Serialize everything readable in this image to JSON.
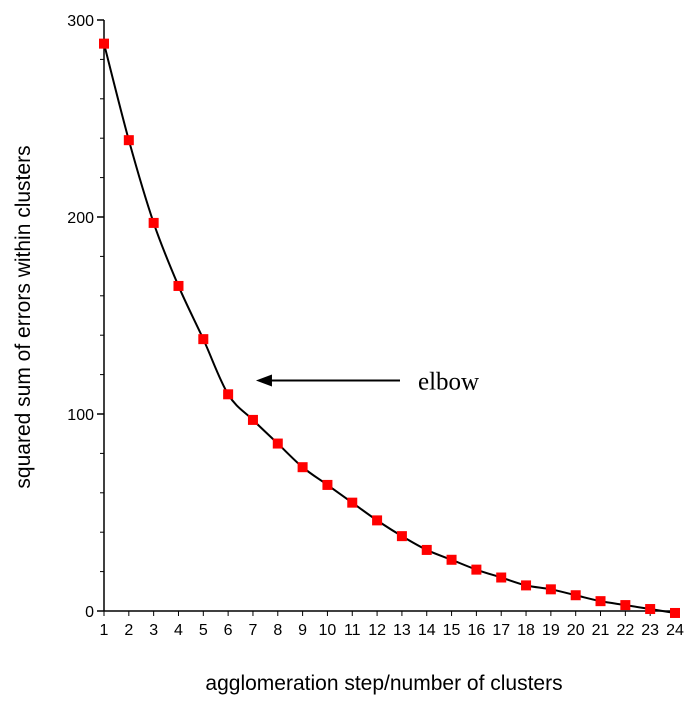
{
  "chart_data": {
    "type": "line",
    "title": "",
    "xlabel": "agglomeration step/number of clusters",
    "ylabel": "squared sum of errors within clusters",
    "x": [
      1,
      2,
      3,
      4,
      5,
      6,
      7,
      8,
      9,
      10,
      11,
      12,
      13,
      14,
      15,
      16,
      17,
      18,
      19,
      20,
      21,
      22,
      23,
      24
    ],
    "series": [
      {
        "values": [
          288,
          239,
          197,
          165,
          138,
          110,
          97,
          85,
          73,
          64,
          55,
          46,
          38,
          31,
          26,
          21,
          17,
          13,
          11,
          8,
          5,
          3,
          1,
          -1
        ],
        "color": "#000000",
        "marker_color": "#ff0000",
        "marker": "square"
      }
    ],
    "xlim": [
      1,
      24
    ],
    "ylim": [
      0,
      300
    ],
    "yticks": [
      0,
      100,
      200,
      300
    ],
    "xticks": [
      1,
      2,
      3,
      4,
      5,
      6,
      7,
      8,
      9,
      10,
      11,
      12,
      13,
      14,
      15,
      16,
      17,
      18,
      19,
      20,
      21,
      22,
      23,
      24
    ],
    "grid": false,
    "annotations": [
      {
        "text": "elbow",
        "points_to_x": 7,
        "points_to_y": 117
      }
    ]
  }
}
